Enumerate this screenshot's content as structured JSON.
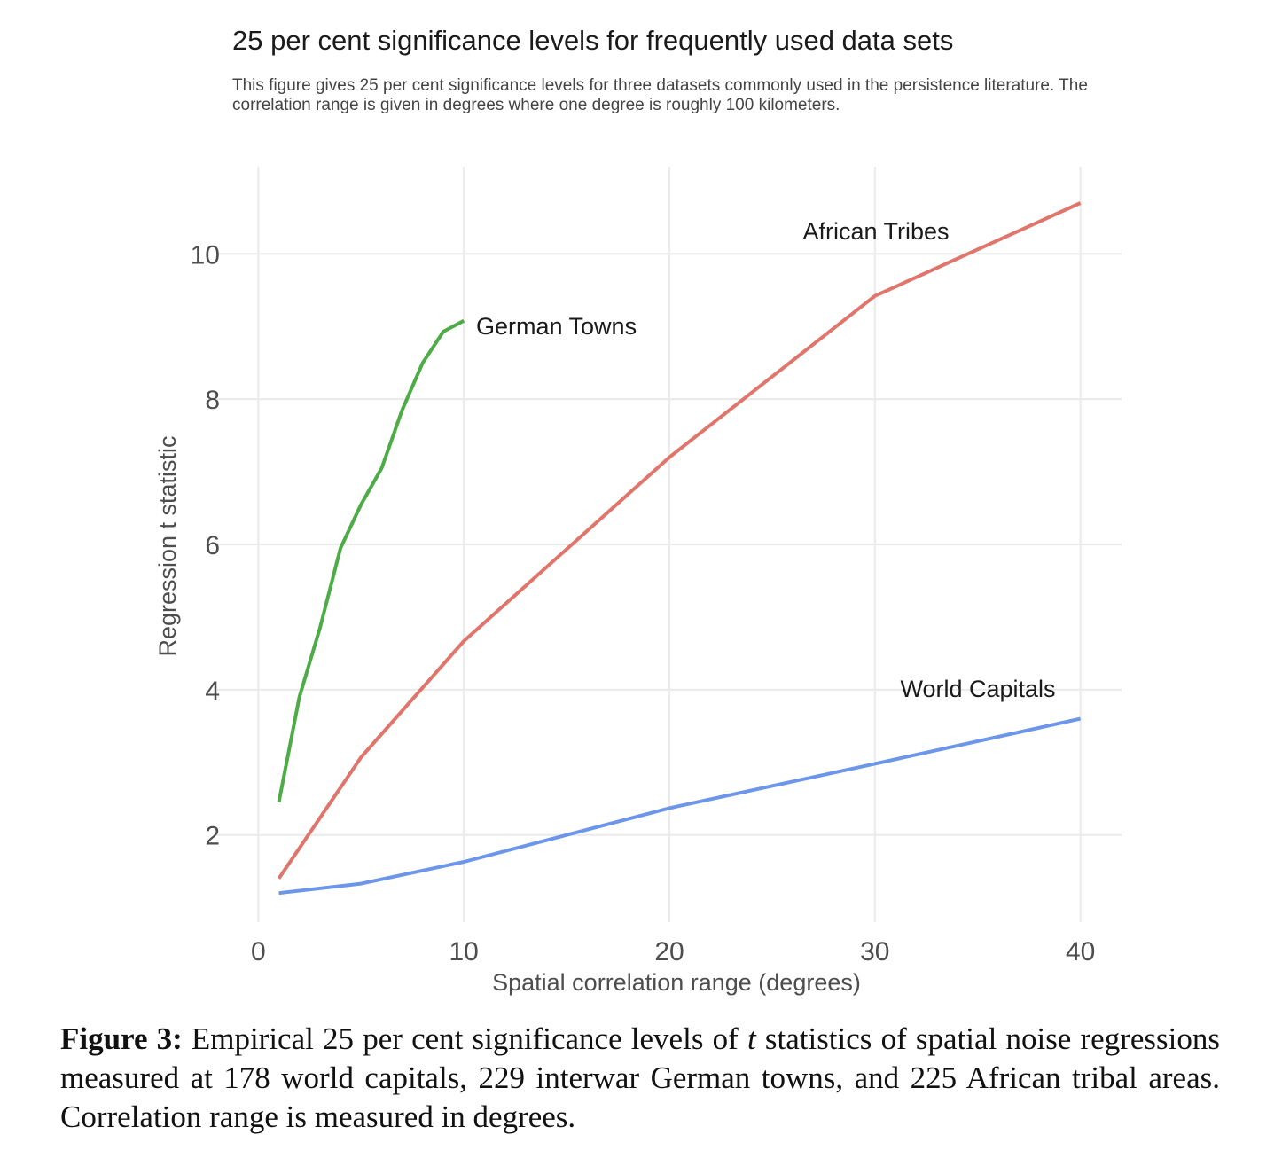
{
  "chart_data": {
    "type": "line",
    "title": "25 per cent significance levels for frequently used data sets",
    "subtitle": "This figure gives 25 per cent significance levels for three datasets commonly used in the persistence literature. The correlation range is given in degrees where one degree is roughly 100 kilometers.",
    "xlabel": "Spatial correlation range (degrees)",
    "ylabel": "Regression t statistic",
    "xlim": [
      -2,
      42
    ],
    "ylim": [
      0.8,
      11.2
    ],
    "xticks": [
      0,
      10,
      20,
      30,
      40
    ],
    "yticks": [
      2,
      4,
      6,
      8,
      10
    ],
    "grid": true,
    "legend": "direct labels",
    "series": [
      {
        "name": "German Towns",
        "color": "#4dac45",
        "x": [
          1,
          2,
          3,
          4,
          5,
          6,
          7,
          8,
          9,
          10
        ],
        "y": [
          2.45,
          3.9,
          4.85,
          5.95,
          6.55,
          7.05,
          7.85,
          8.5,
          8.93,
          9.08
        ]
      },
      {
        "name": "African Tribes",
        "color": "#e0756c",
        "x": [
          1,
          5,
          10,
          20,
          30,
          40
        ],
        "y": [
          1.4,
          3.07,
          4.67,
          7.2,
          9.42,
          10.7
        ]
      },
      {
        "name": "World Capitals",
        "color": "#6b96ea",
        "x": [
          1,
          5,
          10,
          20,
          30,
          40
        ],
        "y": [
          1.2,
          1.33,
          1.63,
          2.37,
          2.98,
          3.6
        ]
      }
    ]
  },
  "caption": {
    "label": "Figure 3:",
    "part1": "Empirical 25 per cent significance levels of ",
    "t": "t",
    "part2": " statistics of spatial noise regressions measured at 178 world capitals, 229 interwar German towns, and 225 African tribal areas. Correlation range is measured in degrees."
  }
}
